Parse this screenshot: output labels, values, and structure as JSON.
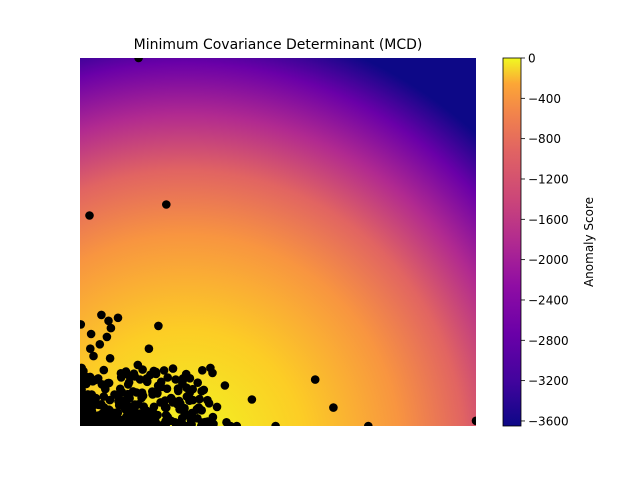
{
  "chart_data": {
    "type": "heatmap",
    "title": "Minimum Covariance Determinant (MCD)",
    "xlabel": "",
    "ylabel": "",
    "axes_visible": false,
    "colormap": "plasma",
    "colorbar": {
      "label": "Anomaly Score",
      "range": [
        -3650,
        0
      ],
      "ticks": [
        0,
        -400,
        -800,
        -1200,
        -1600,
        -2000,
        -2400,
        -2800,
        -3200,
        -3600
      ]
    },
    "point_color": "#000000",
    "points_note": "scatter overlay in normalized plot coordinates (0..1), y up",
    "points": [
      [
        0.148,
        1.0
      ],
      [
        0.024,
        0.572
      ],
      [
        0.218,
        0.602
      ],
      [
        0.002,
        0.276
      ],
      [
        0.028,
        0.25
      ],
      [
        0.054,
        0.302
      ],
      [
        0.072,
        0.286
      ],
      [
        0.078,
        0.266
      ],
      [
        0.096,
        0.294
      ],
      [
        0.068,
        0.242
      ],
      [
        0.198,
        0.272
      ],
      [
        0.174,
        0.21
      ],
      [
        0.026,
        0.21
      ],
      [
        0.05,
        0.222
      ],
      [
        0.034,
        0.19
      ],
      [
        0.076,
        0.184
      ],
      [
        0.146,
        0.166
      ],
      [
        0.004,
        0.158
      ],
      [
        0.06,
        0.152
      ],
      [
        0.104,
        0.132
      ],
      [
        0.136,
        0.142
      ],
      [
        0.07,
        0.116
      ],
      [
        0.594,
        0.126
      ],
      [
        0.366,
        0.11
      ],
      [
        0.134,
        0.094
      ],
      [
        0.23,
        0.076
      ],
      [
        0.27,
        0.08
      ],
      [
        0.322,
        0.07
      ],
      [
        0.434,
        0.072
      ],
      [
        0.64,
        0.05
      ],
      [
        0.346,
        0.052
      ],
      [
        0.218,
        0.05
      ],
      [
        0.262,
        0.04
      ],
      [
        0.3,
        0.05
      ],
      [
        0.196,
        0.03
      ],
      [
        0.152,
        0.034
      ],
      [
        0.004,
        0.098
      ],
      [
        0.02,
        0.086
      ],
      [
        0.04,
        0.076
      ],
      [
        0.06,
        0.08
      ],
      [
        0.1,
        0.06
      ],
      [
        0.118,
        0.048
      ],
      [
        0.09,
        0.036
      ],
      [
        0.005,
        0.02
      ],
      [
        0.03,
        0.04
      ],
      [
        0.06,
        0.03
      ],
      [
        0.12,
        0.016
      ],
      [
        0.178,
        0.014
      ],
      [
        0.24,
        0.01
      ],
      [
        0.28,
        0.016
      ],
      [
        0.32,
        0.01
      ],
      [
        0.37,
        0.01
      ],
      [
        0.38,
        0.0
      ],
      [
        0.396,
        0.0
      ],
      [
        0.494,
        0.0
      ],
      [
        0.728,
        0.0
      ],
      [
        1.0,
        0.014
      ]
    ]
  }
}
